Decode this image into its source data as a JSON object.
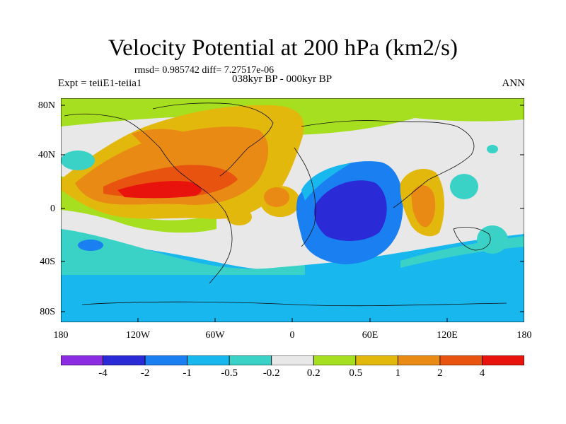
{
  "title": "Velocity Potential at 200 hPa (km2/s)",
  "stats": "rmsd= 0.985742 diff= 7.27517e-06",
  "experiment": "Expt = teiiE1-teiia1",
  "period": "038kyr BP - 000kyr BP",
  "season": "ANN",
  "lat_ticks": [
    "80N",
    "40N",
    "0",
    "40S",
    "80S"
  ],
  "lon_ticks": [
    "180",
    "120W",
    "60W",
    "0",
    "60E",
    "120E",
    "180"
  ],
  "colorbar": {
    "labels": [
      "-4",
      "-2",
      "-1",
      "-0.5",
      "-0.2",
      "0.2",
      "0.5",
      "1",
      "2",
      "4"
    ],
    "colors": [
      "#8b2be2",
      "#2a2ad6",
      "#1a7ff0",
      "#18b7ee",
      "#3ad2c6",
      "#e8e8e8",
      "#a6df1f",
      "#e3b80d",
      "#e88a14",
      "#e85410",
      "#e8130c"
    ]
  },
  "colors": {
    "neutral": "#e8e8e8"
  }
}
